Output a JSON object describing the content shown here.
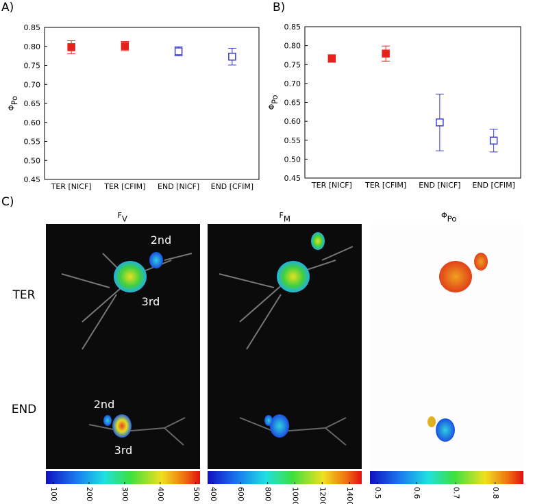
{
  "chart_data": [
    {
      "type": "errorbar",
      "panel": "A)",
      "ylabel": "Φ",
      "ylabel_sub": "Po",
      "categories": [
        "TER [NICF]",
        "TER [CFIM]",
        "END [NICF]",
        "END [CFIM]"
      ],
      "values": [
        0.798,
        0.801,
        0.787,
        0.773
      ],
      "errors": [
        0.017,
        0.012,
        0.012,
        0.022
      ],
      "colors": [
        "#e8201c",
        "#e8201c",
        "#3a3ad0",
        "#3a3ad0"
      ],
      "filled": [
        true,
        true,
        false,
        false
      ],
      "ylim": [
        0.45,
        0.85
      ],
      "yticks": [
        0.45,
        {
          "value": 0.5,
          "label": "0.50"
        },
        0.55,
        {
          "value": 0.6,
          "label": "0.60"
        },
        0.65,
        {
          "value": 0.7,
          "label": "0.70"
        },
        0.75,
        {
          "value": 0.8,
          "label": "0.80"
        },
        0.85
      ]
    },
    {
      "type": "errorbar",
      "panel": "B)",
      "ylabel": "Φ",
      "ylabel_sub": "Po",
      "categories": [
        "TER [NICF]",
        "TER [CFIM]",
        "END [NICF]",
        "END [CFIM]"
      ],
      "values": [
        0.766,
        0.779,
        0.597,
        0.549
      ],
      "errors": [
        0.01,
        0.02,
        0.075,
        0.03
      ],
      "colors": [
        "#e8201c",
        "#e8201c",
        "#3a3ad0",
        "#3a3ad0"
      ],
      "filled": [
        true,
        true,
        false,
        false
      ],
      "ylim": [
        0.45,
        0.85
      ],
      "yticks": [
        0.45,
        {
          "value": 0.5,
          "label": "0.50"
        },
        0.55,
        {
          "value": 0.6,
          "label": "0.60"
        },
        0.65,
        {
          "value": 0.7,
          "label": "0.70"
        },
        0.75,
        {
          "value": 0.8,
          "label": "0.80"
        },
        0.85
      ]
    }
  ],
  "panel_c": {
    "label": "C)",
    "rows": [
      "TER",
      "END"
    ],
    "annotations": [
      "2nd",
      "3rd",
      "2nd",
      "3rd"
    ],
    "columns": [
      {
        "title": "F",
        "title_sub": "V",
        "colorbar_lim": [
          79,
          512
        ],
        "colorbar_ticks": [
          100,
          200,
          300,
          400,
          500
        ]
      },
      {
        "title": "F",
        "title_sub": "M",
        "colorbar_lim": [
          360,
          1490
        ],
        "colorbar_ticks": [
          400,
          600,
          800,
          1000,
          1200,
          1400
        ]
      },
      {
        "title": "Φ",
        "title_sub": "Po",
        "colorbar_lim": [
          0.481,
          0.872
        ],
        "colorbar_ticks": [
          0.5,
          0.6,
          0.7,
          0.8
        ]
      }
    ]
  }
}
